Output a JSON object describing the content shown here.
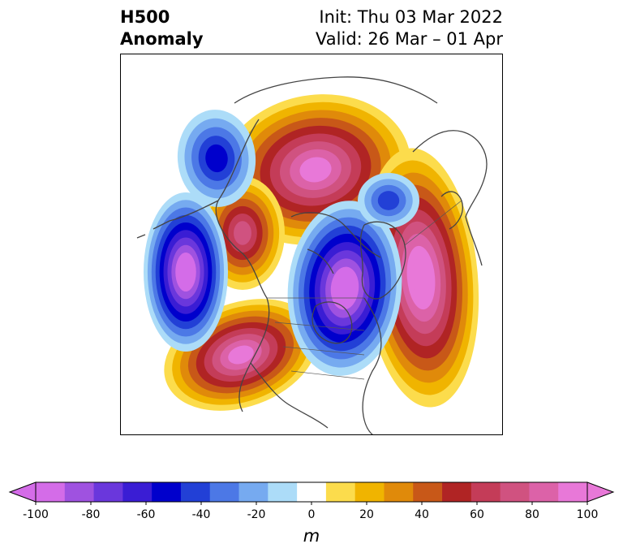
{
  "title": {
    "left": [
      "H500",
      "Anomaly"
    ],
    "right": [
      "Init: Thu 03 Mar 2022",
      "Valid: 26 Mar – 01 Apr"
    ]
  },
  "colorbar": {
    "unit": "m",
    "ticks": [
      "-100",
      "-80",
      "-60",
      "-40",
      "-20",
      "0",
      "20",
      "40",
      "60",
      "80",
      "100"
    ],
    "levels": [
      -100,
      -90,
      -80,
      -70,
      -60,
      -50,
      -40,
      -30,
      -20,
      -10,
      10,
      20,
      30,
      40,
      50,
      60,
      70,
      80,
      90,
      100
    ],
    "colors": [
      "#d46ce8",
      "#9f52e0",
      "#6a37dc",
      "#3a1dd4",
      "#0000cc",
      "#2240d6",
      "#4c78e6",
      "#76aaf0",
      "#acdcf8",
      "#ffffff",
      "#fcdc4c",
      "#f0b400",
      "#e08a0a",
      "#c85818",
      "#b02424",
      "#c43c58",
      "#d05280",
      "#dc62a8",
      "#e878d8"
    ],
    "extend": "both"
  },
  "map": {
    "projection": "north polar stereographic",
    "variable": "500 hPa geopotential height anomaly",
    "features": [
      {
        "name": "ridge-north-pole",
        "sign": "positive",
        "peak": 90
      },
      {
        "name": "ridge-alaska",
        "sign": "positive",
        "peak": 70
      },
      {
        "name": "ridge-europe",
        "sign": "positive",
        "peak": 100
      },
      {
        "name": "ridge-western-us",
        "sign": "positive",
        "peak": 90
      },
      {
        "name": "trough-north-atlantic-greenland",
        "sign": "negative",
        "peak": -100
      },
      {
        "name": "trough-north-pacific",
        "sign": "negative",
        "peak": -100
      },
      {
        "name": "trough-bering",
        "sign": "negative",
        "peak": -50
      },
      {
        "name": "trough-scandinavia",
        "sign": "negative",
        "peak": -40
      }
    ]
  }
}
